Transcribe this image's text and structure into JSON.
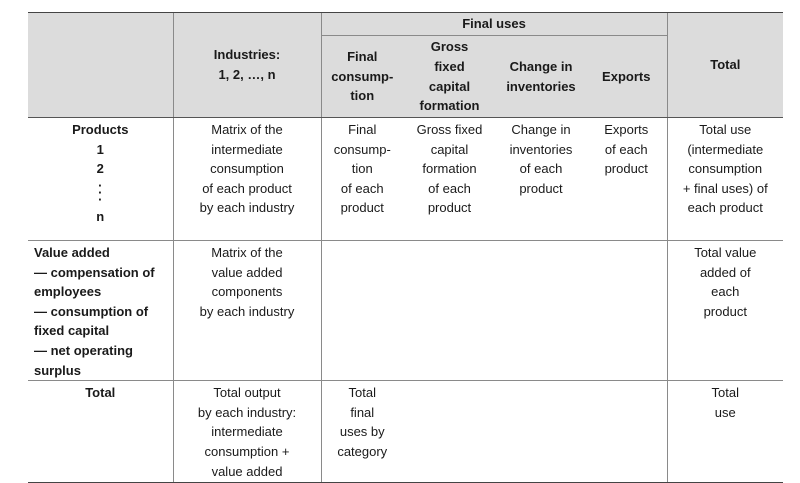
{
  "header": {
    "final_uses": "Final uses",
    "industries": [
      "Industries:",
      "1, 2, …, n"
    ],
    "final_consumption": [
      "Final",
      "consump-",
      "tion"
    ],
    "gfcf": [
      "Gross",
      "fixed",
      "capital",
      "formation"
    ],
    "change_inventories": [
      "Change in",
      "inventories"
    ],
    "exports": "Exports",
    "total": "Total"
  },
  "rows": {
    "products": {
      "label": [
        "Products",
        "1",
        "2",
        "⋮",
        "n"
      ],
      "industries": [
        "Matrix of the",
        "intermediate",
        "consumption",
        "of each product",
        "by  each industry"
      ],
      "final_consumption": [
        "Final",
        "consump-",
        "tion",
        "of each",
        "product"
      ],
      "gfcf": [
        "Gross  fixed",
        "capital",
        "formation",
        "of each",
        "product"
      ],
      "change_inventories": [
        "Change in",
        "inventories",
        "of each",
        "product"
      ],
      "exports": [
        "Exports",
        "of each",
        "product"
      ],
      "total": [
        "Total use",
        "(intermediate",
        "consumption",
        "+ final uses) of",
        "each product"
      ]
    },
    "value_added": {
      "label": [
        "Value added",
        "— compensation of",
        "employees",
        "— consumption of",
        "fixed capital",
        "— net operating",
        "surplus"
      ],
      "industries": [
        "Matrix of the",
        "value added",
        "components",
        "by each industry"
      ],
      "total": [
        "Total value",
        "added of",
        "each",
        "product"
      ]
    },
    "total": {
      "label": "Total",
      "industries": [
        "Total output",
        "by each industry:",
        "intermediate",
        "consumption +",
        "value added"
      ],
      "final_consumption": [
        "Total",
        "final",
        "uses by",
        "category"
      ],
      "total": [
        "Total",
        "use"
      ]
    }
  }
}
